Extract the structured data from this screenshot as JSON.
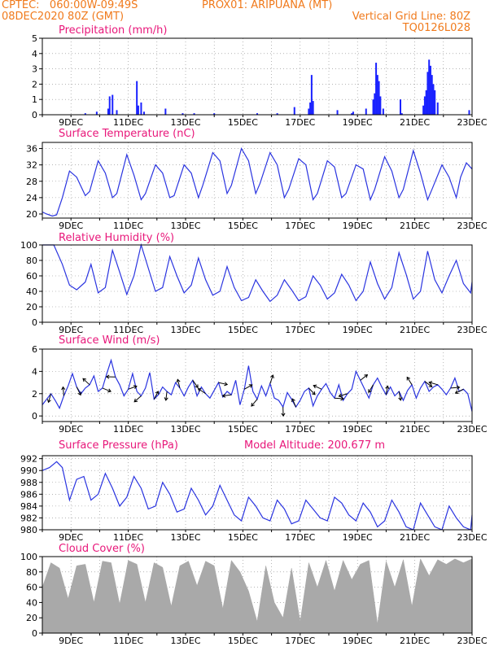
{
  "header": {
    "line1_left": "CPTEC:   060:00W-09:49S",
    "line1_right": "PROX01: ARIPUANA (MT)",
    "line2_left": "08DEC2020 80Z (GMT)",
    "line2_right": "Vertical Grid Line: 80Z",
    "line3_right": "TQ0126L028"
  },
  "colors": {
    "header": "#f07a1c",
    "panel_title": "#e8177a",
    "series_line": "#2a34e0",
    "precip_bar": "#1a22ff",
    "cloud_fill": "#a9a9a9",
    "grid": "#888888",
    "wind_arrow": "#000000"
  },
  "chart_data": [
    {
      "type": "bar",
      "title": "Precipitation (mm/h)",
      "ylim": [
        0,
        5
      ],
      "yticks": [
        0,
        1,
        2,
        3,
        4,
        5
      ],
      "x_range": [
        8.0,
        23.0
      ],
      "xtick_positions": [
        9,
        11,
        13,
        15,
        17,
        19,
        21,
        23
      ],
      "xtick_labels": [
        "9DEC",
        "11DEC",
        "13DEC",
        "15DEC",
        "17DEC",
        "19DEC",
        "21DEC",
        "23DEC"
      ],
      "grid": true,
      "x": [
        9.5,
        9.9,
        10.3,
        10.35,
        10.45,
        10.6,
        11.3,
        11.35,
        11.45,
        11.55,
        12.3,
        12.9,
        13.3,
        14.0,
        15.5,
        16.2,
        16.8,
        17.3,
        17.35,
        17.4,
        17.45,
        18.3,
        18.8,
        18.85,
        19.3,
        19.55,
        19.6,
        19.65,
        19.7,
        19.75,
        19.8,
        19.9,
        20.5,
        20.55,
        21.3,
        21.35,
        21.4,
        21.45,
        21.5,
        21.55,
        21.6,
        21.65,
        21.7,
        21.8,
        22.9
      ],
      "values": [
        0.1,
        0.2,
        0.4,
        1.2,
        1.3,
        0.3,
        2.2,
        0.6,
        0.8,
        0.2,
        0.4,
        0.1,
        0.1,
        0.1,
        0.1,
        0.1,
        0.5,
        0.4,
        0.8,
        2.6,
        0.9,
        0.3,
        0.1,
        0.2,
        0.4,
        1.0,
        1.4,
        3.4,
        2.6,
        2.2,
        1.2,
        0.4,
        1.0,
        0.1,
        0.6,
        1.2,
        1.6,
        2.8,
        3.6,
        3.2,
        2.6,
        2.0,
        1.6,
        0.8,
        0.3
      ]
    },
    {
      "type": "line",
      "title": "Surface Temperature (nC)",
      "ylim": [
        19,
        37.5
      ],
      "yticks": [
        20,
        24,
        28,
        32,
        36
      ],
      "x_range": [
        8.0,
        23.0
      ],
      "xtick_positions": [
        9,
        11,
        13,
        15,
        17,
        19,
        21,
        23
      ],
      "xtick_labels": [
        "9DEC",
        "11DEC",
        "13DEC",
        "15DEC",
        "17DEC",
        "19DEC",
        "21DEC",
        "23DEC"
      ],
      "grid": true,
      "x": [
        8.0,
        8.15,
        8.35,
        8.5,
        8.7,
        8.95,
        9.2,
        9.5,
        9.65,
        9.95,
        10.2,
        10.45,
        10.6,
        10.95,
        11.2,
        11.45,
        11.6,
        11.95,
        12.2,
        12.45,
        12.6,
        12.95,
        13.2,
        13.45,
        13.6,
        13.95,
        14.2,
        14.45,
        14.6,
        14.95,
        15.2,
        15.45,
        15.6,
        15.95,
        16.2,
        16.45,
        16.6,
        16.95,
        17.2,
        17.45,
        17.6,
        17.95,
        18.2,
        18.45,
        18.6,
        18.95,
        19.2,
        19.45,
        19.6,
        19.95,
        20.2,
        20.45,
        20.6,
        20.95,
        21.2,
        21.45,
        21.6,
        21.95,
        22.2,
        22.45,
        22.6,
        22.8,
        23.0
      ],
      "values": [
        20.5,
        20.0,
        19.5,
        19.8,
        24.0,
        30.5,
        29.0,
        24.5,
        25.5,
        33.0,
        30.0,
        24.0,
        25.0,
        34.5,
        29.5,
        23.5,
        25.0,
        32.0,
        30.0,
        24.0,
        24.5,
        32.0,
        30.0,
        24.0,
        27.0,
        35.0,
        33.0,
        25.0,
        27.0,
        36.0,
        33.0,
        25.0,
        27.5,
        35.0,
        32.0,
        24.0,
        26.0,
        33.5,
        32.0,
        23.5,
        25.0,
        33.0,
        31.5,
        24.0,
        25.0,
        32.0,
        31.0,
        23.5,
        26.0,
        34.0,
        30.5,
        24.0,
        26.0,
        35.5,
        30.0,
        23.5,
        26.0,
        32.0,
        29.0,
        24.0,
        29.0,
        32.5,
        31.0
      ]
    },
    {
      "type": "line",
      "title": "Relative Humidity (%)",
      "ylim": [
        0,
        100
      ],
      "yticks": [
        0,
        20,
        40,
        60,
        80,
        100
      ],
      "x_range": [
        8.0,
        23.0
      ],
      "xtick_positions": [
        9,
        11,
        13,
        15,
        17,
        19,
        21,
        23
      ],
      "xtick_labels": [
        "9DEC",
        "11DEC",
        "13DEC",
        "15DEC",
        "17DEC",
        "19DEC",
        "21DEC",
        "23DEC"
      ],
      "grid": true,
      "x": [
        8.0,
        8.4,
        8.7,
        8.95,
        9.2,
        9.5,
        9.7,
        9.95,
        10.2,
        10.45,
        10.7,
        10.95,
        11.2,
        11.45,
        11.7,
        11.95,
        12.2,
        12.45,
        12.7,
        12.95,
        13.2,
        13.45,
        13.7,
        13.95,
        14.2,
        14.45,
        14.7,
        14.95,
        15.2,
        15.45,
        15.7,
        15.95,
        16.2,
        16.45,
        16.7,
        16.95,
        17.2,
        17.45,
        17.7,
        17.95,
        18.2,
        18.45,
        18.7,
        18.95,
        19.2,
        19.45,
        19.7,
        19.95,
        20.2,
        20.45,
        20.7,
        20.95,
        21.2,
        21.45,
        21.7,
        21.95,
        22.2,
        22.45,
        22.7,
        22.95,
        23.0
      ],
      "values": [
        100,
        100,
        75,
        48,
        42,
        52,
        75,
        38,
        45,
        93,
        65,
        36,
        60,
        100,
        70,
        40,
        45,
        85,
        60,
        38,
        48,
        83,
        55,
        35,
        40,
        72,
        45,
        28,
        32,
        55,
        40,
        27,
        35,
        55,
        42,
        28,
        33,
        60,
        48,
        30,
        38,
        62,
        48,
        28,
        40,
        78,
        50,
        30,
        45,
        90,
        62,
        30,
        40,
        92,
        55,
        38,
        60,
        80,
        50,
        38,
        52
      ]
    },
    {
      "type": "line",
      "title": "Surface Wind (m/s)",
      "ylim": [
        -0.5,
        6
      ],
      "yticks": [
        0,
        2,
        4,
        6
      ],
      "x_range": [
        8.0,
        23.0
      ],
      "xtick_positions": [
        9,
        11,
        13,
        15,
        17,
        19,
        21,
        23
      ],
      "xtick_labels": [
        "9DEC",
        "11DEC",
        "13DEC",
        "15DEC",
        "17DEC",
        "19DEC",
        "21DEC",
        "23DEC"
      ],
      "grid": true,
      "x": [
        8.0,
        8.15,
        8.3,
        8.45,
        8.6,
        8.75,
        8.9,
        9.05,
        9.2,
        9.35,
        9.5,
        9.65,
        9.8,
        9.95,
        10.1,
        10.25,
        10.4,
        10.55,
        10.7,
        10.85,
        11.0,
        11.15,
        11.3,
        11.45,
        11.6,
        11.75,
        11.9,
        12.05,
        12.2,
        12.35,
        12.5,
        12.65,
        12.8,
        12.95,
        13.1,
        13.25,
        13.4,
        13.55,
        13.7,
        13.85,
        14.0,
        14.15,
        14.3,
        14.45,
        14.6,
        14.75,
        14.9,
        15.05,
        15.2,
        15.35,
        15.5,
        15.65,
        15.8,
        15.95,
        16.1,
        16.25,
        16.4,
        16.55,
        16.7,
        16.85,
        17.0,
        17.15,
        17.3,
        17.45,
        17.6,
        17.75,
        17.9,
        18.05,
        18.2,
        18.35,
        18.5,
        18.65,
        18.8,
        18.95,
        19.1,
        19.25,
        19.4,
        19.55,
        19.7,
        19.85,
        20.0,
        20.15,
        20.3,
        20.45,
        20.6,
        20.75,
        20.9,
        21.05,
        21.2,
        21.35,
        21.5,
        21.65,
        21.8,
        21.95,
        22.1,
        22.25,
        22.4,
        22.55,
        22.7,
        22.85,
        23.0
      ],
      "values": [
        1.0,
        1.5,
        2.0,
        1.4,
        0.7,
        1.8,
        2.7,
        3.8,
        2.6,
        2.0,
        2.5,
        2.8,
        3.6,
        2.2,
        2.5,
        3.8,
        5.0,
        3.5,
        2.8,
        1.8,
        2.4,
        3.8,
        2.2,
        1.8,
        2.5,
        3.9,
        1.5,
        1.9,
        2.6,
        2.2,
        1.9,
        3.0,
        2.5,
        1.8,
        2.6,
        3.2,
        1.8,
        2.6,
        2.0,
        1.6,
        2.3,
        3.0,
        1.7,
        2.2,
        1.9,
        3.2,
        1.0,
        2.4,
        4.5,
        2.2,
        1.5,
        2.7,
        1.8,
        2.9,
        1.6,
        1.4,
        0.8,
        2.1,
        1.5,
        0.8,
        1.4,
        2.2,
        2.5,
        0.9,
        1.8,
        2.4,
        2.9,
        2.1,
        1.6,
        2.8,
        1.4,
        2.0,
        2.4,
        4.0,
        3.2,
        2.4,
        1.6,
        2.8,
        3.4,
        2.6,
        1.9,
        2.6,
        1.8,
        2.2,
        1.4,
        2.3,
        2.8,
        1.6,
        2.5,
        3.1,
        2.2,
        2.6,
        2.8,
        2.4,
        1.9,
        2.5,
        3.4,
        2.2,
        2.4,
        2.0,
        0.4
      ]
    },
    {
      "type": "line",
      "title": "Surface Pressure (hPa)",
      "subtitle": "Model Altitude: 200.677  m",
      "ylim": [
        980,
        992.5
      ],
      "yticks": [
        980,
        982,
        984,
        986,
        988,
        990,
        992
      ],
      "x_range": [
        8.0,
        23.0
      ],
      "xtick_positions": [
        9,
        11,
        13,
        15,
        17,
        19,
        21,
        23
      ],
      "xtick_labels": [
        "9DEC",
        "11DEC",
        "13DEC",
        "15DEC",
        "17DEC",
        "19DEC",
        "21DEC",
        "23DEC"
      ],
      "grid": true,
      "x": [
        8.0,
        8.25,
        8.5,
        8.7,
        8.95,
        9.2,
        9.45,
        9.7,
        9.95,
        10.2,
        10.45,
        10.7,
        10.95,
        11.2,
        11.45,
        11.7,
        11.95,
        12.2,
        12.45,
        12.7,
        12.95,
        13.2,
        13.45,
        13.7,
        13.95,
        14.2,
        14.45,
        14.7,
        14.95,
        15.2,
        15.45,
        15.7,
        15.95,
        16.2,
        16.45,
        16.7,
        16.95,
        17.2,
        17.45,
        17.7,
        17.95,
        18.2,
        18.45,
        18.7,
        18.95,
        19.2,
        19.45,
        19.7,
        19.95,
        20.2,
        20.45,
        20.7,
        20.95,
        21.2,
        21.45,
        21.7,
        21.95,
        22.2,
        22.45,
        22.7,
        22.95,
        23.0
      ],
      "values": [
        990.0,
        990.5,
        991.5,
        990.5,
        985.0,
        988.5,
        989.0,
        985.0,
        986.0,
        989.5,
        987.0,
        984.0,
        985.5,
        989.0,
        987.0,
        983.5,
        984.0,
        988.0,
        986.0,
        983.0,
        983.5,
        987.0,
        985.0,
        982.5,
        984.0,
        987.5,
        985.0,
        982.5,
        981.5,
        985.5,
        984.0,
        982.0,
        981.5,
        985.0,
        983.5,
        981.0,
        981.5,
        985.0,
        983.5,
        982.0,
        981.5,
        985.5,
        984.5,
        982.5,
        981.5,
        984.5,
        983.0,
        980.5,
        981.5,
        985.0,
        983.0,
        980.5,
        980.0,
        984.5,
        982.5,
        980.5,
        980.0,
        984.0,
        982.0,
        980.5,
        980.0,
        982.5
      ]
    },
    {
      "type": "area",
      "title": "Cloud Cover (%)",
      "ylim": [
        0,
        100
      ],
      "yticks": [
        0,
        20,
        40,
        60,
        80,
        100
      ],
      "x_range": [
        8.0,
        23.0
      ],
      "xtick_positions": [
        9,
        11,
        13,
        15,
        17,
        19,
        21,
        23
      ],
      "xtick_labels": [
        "9DEC",
        "11DEC",
        "13DEC",
        "15DEC",
        "17DEC",
        "19DEC",
        "21DEC",
        "23DEC"
      ],
      "grid": true,
      "x": [
        8.0,
        8.3,
        8.6,
        8.9,
        9.2,
        9.5,
        9.8,
        10.1,
        10.4,
        10.7,
        11.0,
        11.3,
        11.6,
        11.9,
        12.2,
        12.5,
        12.8,
        13.1,
        13.4,
        13.7,
        14.0,
        14.3,
        14.6,
        14.9,
        15.2,
        15.5,
        15.8,
        16.1,
        16.4,
        16.7,
        17.0,
        17.3,
        17.6,
        17.9,
        18.2,
        18.5,
        18.8,
        19.1,
        19.4,
        19.7,
        20.0,
        20.3,
        20.6,
        20.9,
        21.2,
        21.5,
        21.8,
        22.1,
        22.4,
        22.7,
        23.0
      ],
      "values": [
        60,
        92,
        85,
        45,
        88,
        90,
        40,
        94,
        92,
        38,
        95,
        90,
        40,
        92,
        86,
        35,
        88,
        94,
        62,
        94,
        88,
        32,
        95,
        80,
        55,
        15,
        88,
        40,
        20,
        85,
        15,
        92,
        60,
        95,
        55,
        95,
        70,
        90,
        95,
        12,
        94,
        60,
        96,
        35,
        97,
        75,
        96,
        90,
        97,
        92,
        97
      ]
    }
  ]
}
